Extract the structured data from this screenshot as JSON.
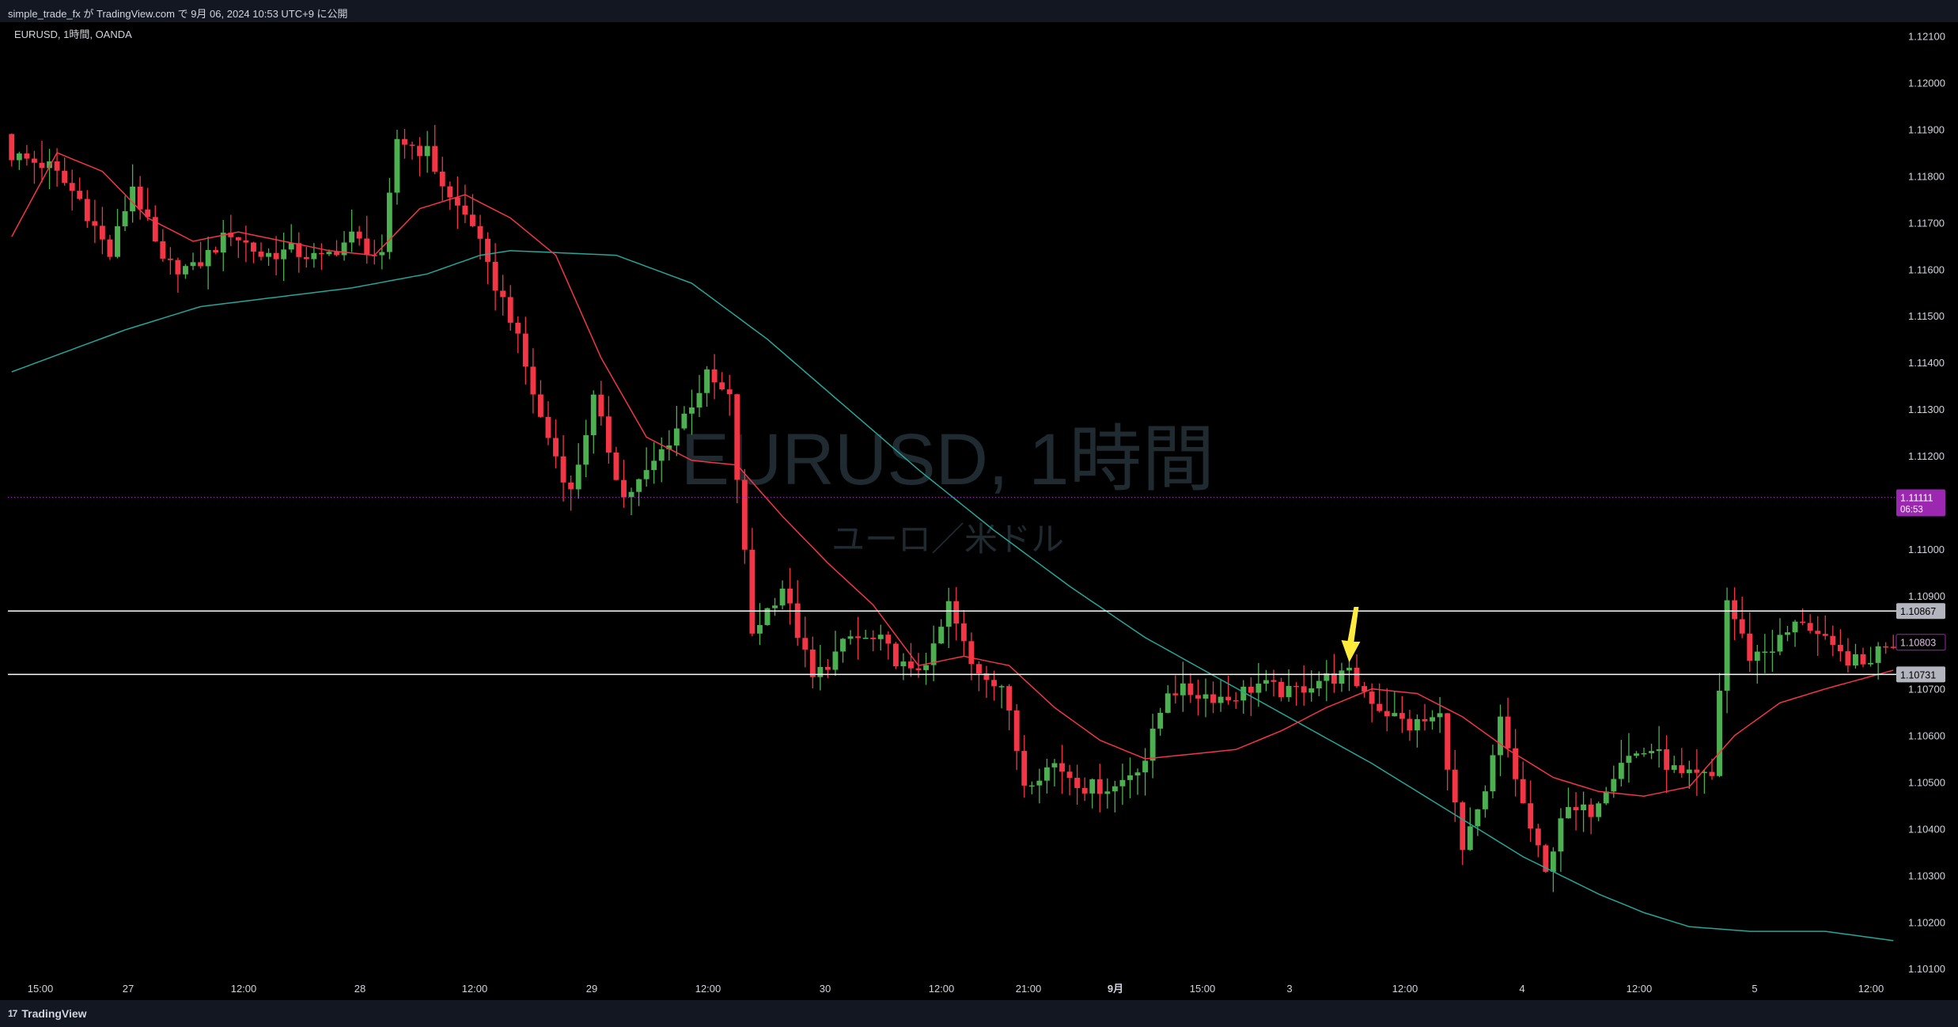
{
  "header": {
    "published_by": "simple_trade_fx が TradingView.com で 9月 06, 2024 10:53 UTC+9 に公開"
  },
  "footer": {
    "logo_text": "TradingView",
    "logo_mark": "17"
  },
  "colors": {
    "background": "#000000",
    "up": "#4caf50",
    "down": "#f23645",
    "ma_fast": "#f23645",
    "ma_slow": "#26a69a",
    "hline": "#ffffff",
    "arrow": "#ffeb3b",
    "current_price_badge": "#9c27b0"
  },
  "chart_data": {
    "type": "candlestick",
    "symbol_line": "EURUSD, 1時間, OANDA",
    "watermark_title": "EURUSD, 1時間",
    "watermark_subtitle": "ユーロ／米ドル",
    "x_ticks": [
      "15:00",
      "27",
      "12:00",
      "28",
      "12:00",
      "29",
      "12:00",
      "30",
      "12:00",
      "21:00",
      "9月",
      "15:00",
      "3",
      "12:00",
      "4",
      "12:00",
      "5",
      "12:00"
    ],
    "y_ticks": [
      "1.12100",
      "1.12000",
      "1.11900",
      "1.11800",
      "1.11700",
      "1.11600",
      "1.11500",
      "1.11400",
      "1.11300",
      "1.11200",
      "1.11000",
      "1.10900",
      "1.10700",
      "1.10600",
      "1.10500",
      "1.10400",
      "1.10300",
      "1.10200",
      "1.10100"
    ],
    "ylim": [
      1.1008,
      1.1213
    ],
    "bars_count": 250,
    "horizontal_lines": [
      {
        "price": 1.10867,
        "label": "1.10867"
      },
      {
        "price": 1.10731,
        "label": "1.10731"
      }
    ],
    "current_price": {
      "price": 1.11111,
      "label": "1.11111",
      "countdown": "06:53"
    },
    "last_close_label": "1.10803",
    "arrow_annotation": {
      "bar": 177,
      "price": 1.10747
    },
    "anchors": [
      [
        0,
        1.1185
      ],
      [
        6,
        1.1182
      ],
      [
        10,
        1.1175
      ],
      [
        14,
        1.1163
      ],
      [
        17,
        1.1178
      ],
      [
        21,
        1.1161
      ],
      [
        25,
        1.116
      ],
      [
        30,
        1.1168
      ],
      [
        34,
        1.1163
      ],
      [
        38,
        1.1164
      ],
      [
        42,
        1.1162
      ],
      [
        46,
        1.1167
      ],
      [
        50,
        1.1162
      ],
      [
        52,
        1.1188
      ],
      [
        56,
        1.1185
      ],
      [
        59,
        1.1175
      ],
      [
        62,
        1.117
      ],
      [
        64,
        1.116
      ],
      [
        67,
        1.115
      ],
      [
        71,
        1.1128
      ],
      [
        75,
        1.1112
      ],
      [
        78,
        1.1132
      ],
      [
        82,
        1.1111
      ],
      [
        85,
        1.1116
      ],
      [
        89,
        1.1126
      ],
      [
        93,
        1.1137
      ],
      [
        96,
        1.1132
      ],
      [
        99,
        1.1082
      ],
      [
        103,
        1.1092
      ],
      [
        107,
        1.1072
      ],
      [
        112,
        1.1081
      ],
      [
        116,
        1.108
      ],
      [
        120,
        1.1073
      ],
      [
        123,
        1.1078
      ],
      [
        125,
        1.1088
      ],
      [
        128,
        1.1075
      ],
      [
        132,
        1.1071
      ],
      [
        135,
        1.105
      ],
      [
        139,
        1.1054
      ],
      [
        143,
        1.1049
      ],
      [
        147,
        1.1049
      ],
      [
        151,
        1.1055
      ],
      [
        154,
        1.107
      ],
      [
        158,
        1.1069
      ],
      [
        162,
        1.1068
      ],
      [
        166,
        1.1071
      ],
      [
        170,
        1.1069
      ],
      [
        174,
        1.1072
      ],
      [
        178,
        1.1073
      ],
      [
        182,
        1.1066
      ],
      [
        186,
        1.1062
      ],
      [
        190,
        1.1064
      ],
      [
        193,
        1.1035
      ],
      [
        196,
        1.1047
      ],
      [
        198,
        1.1063
      ],
      [
        201,
        1.1045
      ],
      [
        204,
        1.103
      ],
      [
        206,
        1.1043
      ],
      [
        210,
        1.1044
      ],
      [
        214,
        1.1055
      ],
      [
        218,
        1.1057
      ],
      [
        222,
        1.1051
      ],
      [
        226,
        1.1051
      ],
      [
        228,
        1.1089
      ],
      [
        231,
        1.1077
      ],
      [
        234,
        1.1079
      ],
      [
        238,
        1.1085
      ],
      [
        242,
        1.1078
      ],
      [
        246,
        1.1075
      ],
      [
        249,
        1.108
      ]
    ],
    "ma_fast_anchors": [
      [
        0,
        1.1167
      ],
      [
        6,
        1.1185
      ],
      [
        12,
        1.1181
      ],
      [
        18,
        1.1171
      ],
      [
        24,
        1.1166
      ],
      [
        30,
        1.1168
      ],
      [
        36,
        1.1166
      ],
      [
        42,
        1.1164
      ],
      [
        48,
        1.1163
      ],
      [
        54,
        1.1173
      ],
      [
        60,
        1.1176
      ],
      [
        66,
        1.1171
      ],
      [
        72,
        1.1163
      ],
      [
        78,
        1.1141
      ],
      [
        84,
        1.1124
      ],
      [
        90,
        1.1119
      ],
      [
        96,
        1.1118
      ],
      [
        102,
        1.1107
      ],
      [
        108,
        1.1097
      ],
      [
        114,
        1.1088
      ],
      [
        120,
        1.1075
      ],
      [
        126,
        1.1077
      ],
      [
        132,
        1.1075
      ],
      [
        138,
        1.1066
      ],
      [
        144,
        1.1059
      ],
      [
        150,
        1.1055
      ],
      [
        156,
        1.1056
      ],
      [
        162,
        1.1057
      ],
      [
        168,
        1.1061
      ],
      [
        174,
        1.1066
      ],
      [
        180,
        1.107
      ],
      [
        186,
        1.1069
      ],
      [
        192,
        1.1064
      ],
      [
        198,
        1.1057
      ],
      [
        204,
        1.1051
      ],
      [
        210,
        1.1048
      ],
      [
        216,
        1.1047
      ],
      [
        222,
        1.1049
      ],
      [
        228,
        1.106
      ],
      [
        234,
        1.1067
      ],
      [
        240,
        1.107
      ],
      [
        249,
        1.1074
      ]
    ],
    "ma_slow_anchors": [
      [
        0,
        1.1138
      ],
      [
        15,
        1.1147
      ],
      [
        25,
        1.1152
      ],
      [
        35,
        1.1154
      ],
      [
        45,
        1.1156
      ],
      [
        55,
        1.1159
      ],
      [
        62,
        1.1163
      ],
      [
        66,
        1.1164
      ],
      [
        80,
        1.1163
      ],
      [
        90,
        1.1157
      ],
      [
        100,
        1.1145
      ],
      [
        110,
        1.1131
      ],
      [
        120,
        1.1117
      ],
      [
        130,
        1.1104
      ],
      [
        140,
        1.1092
      ],
      [
        150,
        1.1081
      ],
      [
        160,
        1.1072
      ],
      [
        170,
        1.1063
      ],
      [
        180,
        1.1054
      ],
      [
        190,
        1.1044
      ],
      [
        200,
        1.1034
      ],
      [
        210,
        1.1026
      ],
      [
        216,
        1.1022
      ],
      [
        222,
        1.1019
      ],
      [
        230,
        1.1018
      ],
      [
        240,
        1.1018
      ],
      [
        249,
        1.1016
      ]
    ]
  }
}
